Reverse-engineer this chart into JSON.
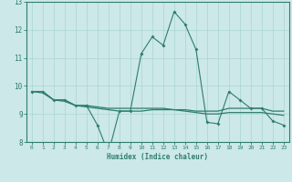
{
  "xlabel": "Humidex (Indice chaleur)",
  "x": [
    0,
    1,
    2,
    3,
    4,
    5,
    6,
    7,
    8,
    9,
    10,
    11,
    12,
    13,
    14,
    15,
    16,
    17,
    18,
    19,
    20,
    21,
    22,
    23
  ],
  "line1": [
    9.8,
    9.8,
    9.5,
    9.5,
    9.3,
    9.3,
    8.6,
    7.6,
    9.1,
    9.1,
    11.15,
    11.75,
    11.45,
    12.65,
    12.2,
    11.3,
    8.7,
    8.65,
    9.8,
    9.5,
    9.2,
    9.2,
    8.75,
    8.6
  ],
  "line2": [
    9.8,
    9.8,
    9.5,
    9.5,
    9.3,
    9.3,
    9.25,
    9.2,
    9.2,
    9.2,
    9.2,
    9.2,
    9.2,
    9.15,
    9.15,
    9.1,
    9.1,
    9.1,
    9.2,
    9.2,
    9.2,
    9.2,
    9.1,
    9.1
  ],
  "line3": [
    9.8,
    9.75,
    9.5,
    9.45,
    9.3,
    9.25,
    9.2,
    9.15,
    9.1,
    9.1,
    9.1,
    9.15,
    9.15,
    9.15,
    9.1,
    9.05,
    9.0,
    9.0,
    9.05,
    9.05,
    9.05,
    9.05,
    9.0,
    8.95
  ],
  "line_color": "#2e7d6e",
  "bg_color": "#cce8e8",
  "grid_color": "#aad4d4",
  "ylim": [
    8,
    13
  ],
  "yticks": [
    8,
    9,
    10,
    11,
    12,
    13
  ],
  "xticks": [
    0,
    1,
    2,
    3,
    4,
    5,
    6,
    7,
    8,
    9,
    10,
    11,
    12,
    13,
    14,
    15,
    16,
    17,
    18,
    19,
    20,
    21,
    22,
    23
  ]
}
